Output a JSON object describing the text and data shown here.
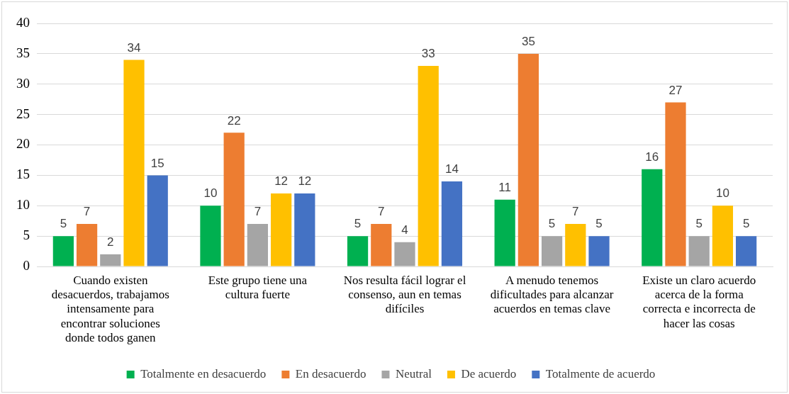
{
  "chart_data": {
    "type": "bar",
    "categories": [
      "Cuando existen desacuerdos, trabajamos intensamente para encontrar soluciones donde todos ganen",
      "Este grupo tiene una cultura fuerte",
      "Nos resulta fácil lograr el consenso, aun en temas difíciles",
      "A menudo tenemos dificultades para alcanzar acuerdos en temas clave",
      "Existe un claro acuerdo acerca de la forma correcta e incorrecta de hacer las cosas"
    ],
    "series": [
      {
        "name": "Totalmente en desacuerdo",
        "color": "#00b050",
        "values": [
          5,
          10,
          5,
          11,
          16
        ]
      },
      {
        "name": "En desacuerdo",
        "color": "#ed7d31",
        "values": [
          7,
          22,
          7,
          35,
          27
        ]
      },
      {
        "name": "Neutral",
        "color": "#a5a5a5",
        "values": [
          2,
          7,
          4,
          5,
          5
        ]
      },
      {
        "name": "De acuerdo",
        "color": "#ffc000",
        "values": [
          34,
          12,
          33,
          7,
          10
        ]
      },
      {
        "name": "Totalmente de acuerdo",
        "color": "#4472c4",
        "values": [
          15,
          12,
          14,
          5,
          5
        ]
      }
    ],
    "ylim": [
      0,
      40
    ],
    "yticks": [
      0,
      5,
      10,
      15,
      20,
      25,
      30,
      35,
      40
    ],
    "grid": "y",
    "legend": "bottom",
    "data_labels": true
  }
}
